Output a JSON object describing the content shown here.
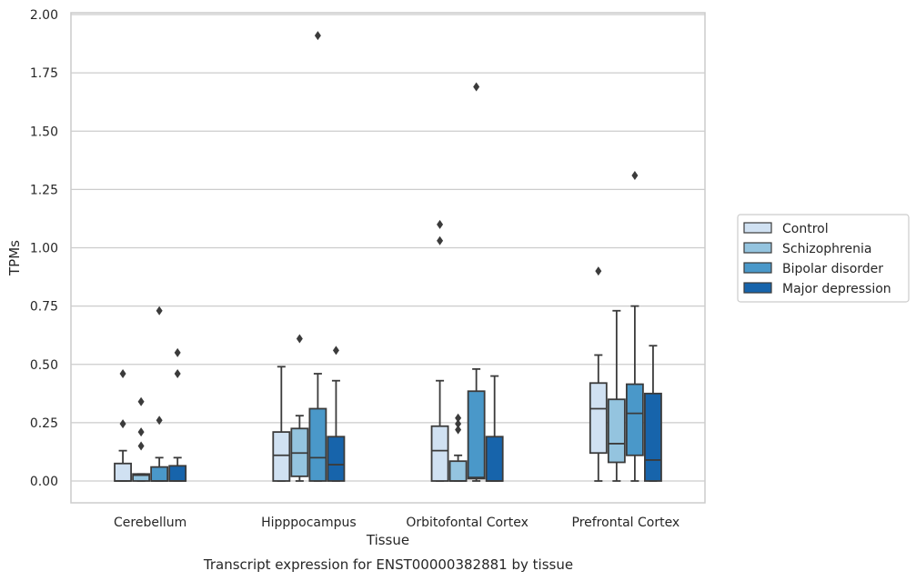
{
  "chart_data": {
    "type": "box",
    "title": "",
    "xlabel": "Tissue",
    "ylabel": "TPMs",
    "caption": "Transcript expression for ENST00000382881 by tissue",
    "ylim": [
      -0.09,
      2.0
    ],
    "yticks": [
      0.0,
      0.25,
      0.5,
      0.75,
      1.0,
      1.25,
      1.5,
      1.75,
      2.0
    ],
    "ytick_labels": [
      "0.00",
      "0.25",
      "0.50",
      "0.75",
      "1.00",
      "1.25",
      "1.50",
      "1.75",
      "2.00"
    ],
    "categories": [
      "Cerebellum",
      "Hipppocampus",
      "Orbitofontal Cortex",
      "Prefrontal Cortex"
    ],
    "grid": true,
    "legend_position": "outside-right",
    "series": [
      {
        "name": "Control",
        "color": "#d0e1f2",
        "boxes": [
          {
            "min": 0.0,
            "q1": 0.0,
            "median": 0.0,
            "q3": 0.075,
            "max": 0.13,
            "outliers": [
              0.46,
              0.245
            ]
          },
          {
            "min": 0.0,
            "q1": 0.0,
            "median": 0.11,
            "q3": 0.21,
            "max": 0.49,
            "outliers": []
          },
          {
            "min": 0.0,
            "q1": 0.0,
            "median": 0.13,
            "q3": 0.235,
            "max": 0.43,
            "outliers": [
              1.1,
              1.03
            ]
          },
          {
            "min": 0.0,
            "q1": 0.12,
            "median": 0.31,
            "q3": 0.42,
            "max": 0.54,
            "outliers": [
              0.9
            ]
          }
        ]
      },
      {
        "name": "Schizophrenia",
        "color": "#94c4df",
        "boxes": [
          {
            "min": 0.0,
            "q1": 0.0,
            "median": 0.025,
            "q3": 0.03,
            "max": 0.03,
            "outliers": [
              0.34,
              0.21,
              0.15
            ]
          },
          {
            "min": 0.0,
            "q1": 0.02,
            "median": 0.12,
            "q3": 0.225,
            "max": 0.28,
            "outliers": [
              0.61
            ]
          },
          {
            "min": 0.0,
            "q1": 0.0,
            "median": 0.0,
            "q3": 0.085,
            "max": 0.11,
            "outliers": [
              0.27,
              0.245,
              0.22
            ]
          },
          {
            "min": 0.0,
            "q1": 0.08,
            "median": 0.16,
            "q3": 0.35,
            "max": 0.73,
            "outliers": []
          }
        ]
      },
      {
        "name": "Bipolar disorder",
        "color": "#4a98c9",
        "boxes": [
          {
            "min": 0.0,
            "q1": 0.0,
            "median": 0.0,
            "q3": 0.06,
            "max": 0.1,
            "outliers": [
              0.73,
              0.26
            ]
          },
          {
            "min": 0.0,
            "q1": 0.0,
            "median": 0.1,
            "q3": 0.31,
            "max": 0.46,
            "outliers": [
              1.91
            ]
          },
          {
            "min": 0.0,
            "q1": 0.01,
            "median": 0.015,
            "q3": 0.385,
            "max": 0.48,
            "outliers": [
              1.69
            ]
          },
          {
            "min": 0.0,
            "q1": 0.11,
            "median": 0.29,
            "q3": 0.415,
            "max": 0.75,
            "outliers": [
              1.31
            ]
          }
        ]
      },
      {
        "name": "Major depression",
        "color": "#1764ab",
        "boxes": [
          {
            "min": 0.0,
            "q1": 0.0,
            "median": 0.0,
            "q3": 0.065,
            "max": 0.1,
            "outliers": [
              0.55,
              0.46
            ]
          },
          {
            "min": 0.0,
            "q1": 0.0,
            "median": 0.07,
            "q3": 0.19,
            "max": 0.43,
            "outliers": [
              0.56
            ]
          },
          {
            "min": 0.0,
            "q1": 0.0,
            "median": 0.0,
            "q3": 0.19,
            "max": 0.45,
            "outliers": []
          },
          {
            "min": 0.0,
            "q1": 0.0,
            "median": 0.09,
            "q3": 0.375,
            "max": 0.58,
            "outliers": []
          }
        ]
      }
    ]
  }
}
